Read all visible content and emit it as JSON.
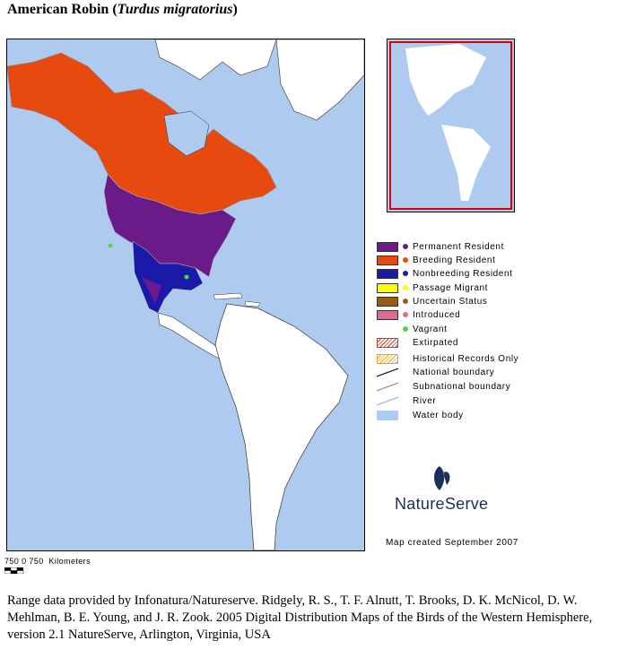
{
  "title": {
    "common_name": "American Robin",
    "scientific_name": "Turdus migratorius"
  },
  "colors": {
    "water": "#aecbef",
    "land": "#ffffff",
    "permanent": "#6b1a8a",
    "breeding": "#e64a0f",
    "nonbreeding": "#1a1aa8",
    "passage": "#ffff00",
    "uncertain": "#9a5a1a",
    "introduced": "#e06a8a",
    "vagrant": "#4ad84a",
    "inset_box": "#e00000"
  },
  "legend": [
    {
      "key": "permanent",
      "label": "Permanent Resident",
      "marker": "swatch-dot"
    },
    {
      "key": "breeding",
      "label": "Breeding Resident",
      "marker": "swatch-dot"
    },
    {
      "key": "nonbreeding",
      "label": "Nonbreeding Resident",
      "marker": "swatch-dot"
    },
    {
      "key": "passage",
      "label": "Passage Migrant",
      "marker": "swatch-dot"
    },
    {
      "key": "uncertain",
      "label": "Uncertain Status",
      "marker": "swatch-dot"
    },
    {
      "key": "introduced",
      "label": "Introduced",
      "marker": "swatch-dot"
    },
    {
      "key": "vagrant",
      "label": "Vagrant",
      "marker": "dot"
    },
    {
      "key": "extirpated",
      "label": "Extirpated",
      "marker": "hatch-red"
    },
    {
      "key": "historical",
      "label": "Historical Records Only",
      "marker": "hatch-orange"
    },
    {
      "key": "national",
      "label": "National boundary",
      "marker": "line-dark"
    },
    {
      "key": "subnational",
      "label": "Subnational boundary",
      "marker": "line-gray"
    },
    {
      "key": "river",
      "label": "River",
      "marker": "line-blue"
    },
    {
      "key": "water",
      "label": "Water body",
      "marker": "water-fill"
    }
  ],
  "scale": {
    "ticks": "750 0 750",
    "unit": "Kilometers"
  },
  "map_credit": "Map created September 2007",
  "logo_text": "NatureServe",
  "footnote": "Range data provided by Infonatura/Natureserve. Ridgely, R. S., T. F. Alnutt, T. Brooks, D. K. McNicol, D. W. Mehlman, B. E. Young, and J. R. Zook. 2005 Digital Distribution Maps of the Birds of the Western Hemisphere, version 2.1 NatureServe, Arlington, Virginia, USA"
}
